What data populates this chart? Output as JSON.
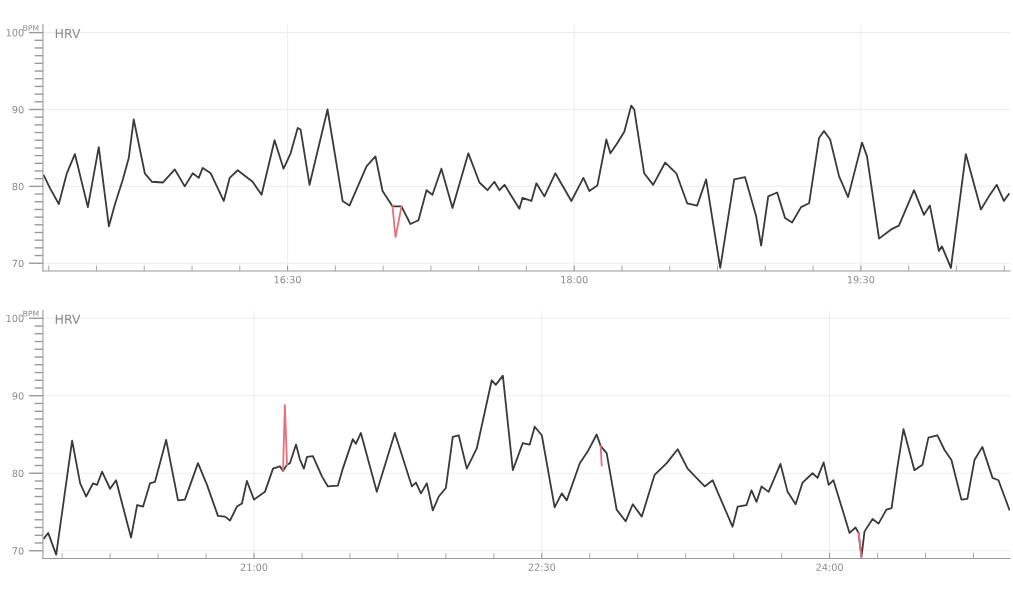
{
  "chart_data": [
    {
      "type": "line",
      "title": "HRV",
      "ylabel": "BPM",
      "grid": true,
      "xlim": [
        15.22,
        20.28
      ],
      "ylim": [
        69,
        101
      ],
      "xticks": [
        {
          "value": 15.25,
          "label": null
        },
        {
          "value": 15.5,
          "label": null
        },
        {
          "value": 15.75,
          "label": null
        },
        {
          "value": 16.0,
          "label": null
        },
        {
          "value": 16.25,
          "label": null
        },
        {
          "value": 16.5,
          "label": "16:30"
        },
        {
          "value": 16.75,
          "label": null
        },
        {
          "value": 17.0,
          "label": null
        },
        {
          "value": 17.25,
          "label": null
        },
        {
          "value": 17.5,
          "label": null
        },
        {
          "value": 17.75,
          "label": null
        },
        {
          "value": 18.0,
          "label": "18:00"
        },
        {
          "value": 18.25,
          "label": null
        },
        {
          "value": 18.5,
          "label": null
        },
        {
          "value": 18.75,
          "label": null
        },
        {
          "value": 19.0,
          "label": null
        },
        {
          "value": 19.25,
          "label": null
        },
        {
          "value": 19.5,
          "label": "19:30"
        },
        {
          "value": 19.75,
          "label": null
        },
        {
          "value": 20.0,
          "label": null
        },
        {
          "value": 20.25,
          "label": null
        }
      ],
      "yticks": [
        70,
        {
          "value": 71,
          "label": null
        },
        {
          "value": 72,
          "label": null
        },
        {
          "value": 73,
          "label": null
        },
        {
          "value": 74,
          "label": null
        },
        {
          "value": 75,
          "label": null
        },
        {
          "value": 76,
          "label": null
        },
        {
          "value": 77,
          "label": null
        },
        {
          "value": 78,
          "label": null
        },
        {
          "value": 79,
          "label": null
        },
        80,
        {
          "value": 81,
          "label": null
        },
        {
          "value": 82,
          "label": null
        },
        {
          "value": 83,
          "label": null
        },
        {
          "value": 84,
          "label": null
        },
        {
          "value": 85,
          "label": null
        },
        {
          "value": 86,
          "label": null
        },
        {
          "value": 87,
          "label": null
        },
        {
          "value": 88,
          "label": null
        },
        {
          "value": 89,
          "label": null
        },
        90,
        {
          "value": 91,
          "label": null
        },
        {
          "value": 92,
          "label": null
        },
        {
          "value": 93,
          "label": null
        },
        {
          "value": 94,
          "label": null
        },
        {
          "value": 95,
          "label": null
        },
        {
          "value": 96,
          "label": null
        },
        {
          "value": 97,
          "label": null
        },
        {
          "value": 98,
          "label": null
        },
        {
          "value": 99,
          "label": null
        },
        100
      ],
      "series": [
        {
          "color": "#3a3a3a",
          "x": [
            15.225,
            15.256,
            15.303,
            15.345,
            15.387,
            15.455,
            15.512,
            15.565,
            15.596,
            15.638,
            15.669,
            15.695,
            15.753,
            15.79,
            15.847,
            15.91,
            15.962,
            16.004,
            16.035,
            16.056,
            16.098,
            16.166,
            16.197,
            16.239,
            16.317,
            16.364,
            16.432,
            16.479,
            16.516,
            16.553,
            16.568,
            16.615,
            16.709,
            16.788,
            16.824,
            16.913,
            16.96,
            16.997,
            17.049,
            17.096,
            17.143,
            17.185,
            17.227,
            17.258,
            17.305,
            17.363,
            17.446,
            17.504,
            17.546,
            17.582,
            17.609,
            17.635,
            17.713,
            17.729,
            17.776,
            17.802,
            17.844,
            17.901,
            17.985,
            18.048,
            18.079,
            18.121,
            18.168,
            18.189,
            18.225,
            18.262,
            18.298,
            18.314,
            18.366,
            18.413,
            18.476,
            18.534,
            18.591,
            18.643,
            18.69,
            18.764,
            18.837,
            18.894,
            18.952,
            18.978,
            19.015,
            19.062,
            19.103,
            19.14,
            19.187,
            19.229,
            19.281,
            19.307,
            19.339,
            19.386,
            19.433,
            19.506,
            19.532,
            19.595,
            19.658,
            19.699,
            19.778,
            19.83,
            19.861,
            19.908,
            19.924,
            19.971,
            20.049,
            20.128,
            20.17,
            20.211,
            20.248,
            20.274
          ],
          "values": [
            81.4,
            79.8,
            77.7,
            81.7,
            84.2,
            77.3,
            85.1,
            74.8,
            77.6,
            80.9,
            83.7,
            88.7,
            81.7,
            80.6,
            80.5,
            82.2,
            80.0,
            81.7,
            81.1,
            82.4,
            81.7,
            78.1,
            81.1,
            82.1,
            80.6,
            78.9,
            86.0,
            82.3,
            84.3,
            87.6,
            87.4,
            80.2,
            90.0,
            78.1,
            77.5,
            82.6,
            83.9,
            79.4,
            77.4,
            77.4,
            75.1,
            75.6,
            79.5,
            78.9,
            82.3,
            77.2,
            84.3,
            80.5,
            79.5,
            80.6,
            79.5,
            80.2,
            77.1,
            78.5,
            78.1,
            80.4,
            78.7,
            81.7,
            78.1,
            81.1,
            79.4,
            80.1,
            86.1,
            84.3,
            85.6,
            87.1,
            90.5,
            90.0,
            81.7,
            80.2,
            83.1,
            81.7,
            77.8,
            77.5,
            80.9,
            69.4,
            80.9,
            81.2,
            76.1,
            72.3,
            78.7,
            79.2,
            75.9,
            75.3,
            77.3,
            77.8,
            86.3,
            87.2,
            86.1,
            81.3,
            78.6,
            85.7,
            83.9,
            73.2,
            74.4,
            74.9,
            79.5,
            76.3,
            77.5,
            71.6,
            72.2,
            69.4,
            84.2,
            77.0,
            78.7,
            80.2,
            78.1,
            79.0
          ]
        },
        {
          "color": "#e8707a",
          "x": [
            17.049,
            17.065,
            17.096
          ],
          "values": [
            77.4,
            73.4,
            77.4
          ]
        }
      ]
    },
    {
      "type": "line",
      "title": "HRV",
      "ylabel": "BPM",
      "grid": true,
      "xlim": [
        19.9,
        24.94
      ],
      "ylim": [
        69,
        101
      ],
      "xticks": [
        {
          "value": 20.0,
          "label": null
        },
        {
          "value": 20.25,
          "label": null
        },
        {
          "value": 20.5,
          "label": null
        },
        {
          "value": 20.75,
          "label": null
        },
        {
          "value": 21.0,
          "label": "21:00"
        },
        {
          "value": 21.25,
          "label": null
        },
        {
          "value": 21.5,
          "label": null
        },
        {
          "value": 21.75,
          "label": null
        },
        {
          "value": 22.0,
          "label": null
        },
        {
          "value": 22.25,
          "label": null
        },
        {
          "value": 22.5,
          "label": "22:30"
        },
        {
          "value": 22.75,
          "label": null
        },
        {
          "value": 23.0,
          "label": null
        },
        {
          "value": 23.25,
          "label": null
        },
        {
          "value": 23.5,
          "label": null
        },
        {
          "value": 23.75,
          "label": null
        },
        {
          "value": 24.0,
          "label": "24:00"
        },
        {
          "value": 24.25,
          "label": null
        },
        {
          "value": 24.5,
          "label": null
        },
        {
          "value": 24.75,
          "label": null
        }
      ],
      "yticks": [
        70,
        {
          "value": 71,
          "label": null
        },
        {
          "value": 72,
          "label": null
        },
        {
          "value": 73,
          "label": null
        },
        {
          "value": 74,
          "label": null
        },
        {
          "value": 75,
          "label": null
        },
        {
          "value": 76,
          "label": null
        },
        {
          "value": 77,
          "label": null
        },
        {
          "value": 78,
          "label": null
        },
        {
          "value": 79,
          "label": null
        },
        80,
        {
          "value": 81,
          "label": null
        },
        {
          "value": 82,
          "label": null
        },
        {
          "value": 83,
          "label": null
        },
        {
          "value": 84,
          "label": null
        },
        {
          "value": 85,
          "label": null
        },
        {
          "value": 86,
          "label": null
        },
        {
          "value": 87,
          "label": null
        },
        {
          "value": 88,
          "label": null
        },
        {
          "value": 89,
          "label": null
        },
        90,
        {
          "value": 91,
          "label": null
        },
        {
          "value": 92,
          "label": null
        },
        {
          "value": 93,
          "label": null
        },
        {
          "value": 94,
          "label": null
        },
        {
          "value": 95,
          "label": null
        },
        {
          "value": 96,
          "label": null
        },
        {
          "value": 97,
          "label": null
        },
        {
          "value": 98,
          "label": null
        },
        {
          "value": 99,
          "label": null
        },
        100
      ],
      "series": [
        {
          "color": "#3a3a3a",
          "x": [
            19.906,
            19.927,
            19.969,
            20.052,
            20.094,
            20.125,
            20.161,
            20.182,
            20.208,
            20.25,
            20.281,
            20.359,
            20.391,
            20.422,
            20.458,
            20.484,
            20.542,
            20.604,
            20.64,
            20.708,
            20.755,
            20.812,
            20.849,
            20.875,
            20.911,
            20.937,
            20.963,
            21.0,
            21.057,
            21.099,
            21.135,
            21.151,
            21.172,
            21.187,
            21.219,
            21.239,
            21.26,
            21.276,
            21.307,
            21.354,
            21.385,
            21.437,
            21.463,
            21.515,
            21.531,
            21.557,
            21.64,
            21.734,
            21.823,
            21.844,
            21.87,
            21.901,
            21.932,
            21.963,
            22.0,
            22.036,
            22.067,
            22.109,
            22.161,
            22.239,
            22.26,
            22.297,
            22.349,
            22.401,
            22.437,
            22.463,
            22.5,
            22.567,
            22.604,
            22.63,
            22.698,
            22.739,
            22.786,
            22.807,
            22.838,
            22.89,
            22.937,
            22.974,
            23.021,
            23.088,
            23.151,
            23.208,
            23.26,
            23.349,
            23.39,
            23.494,
            23.521,
            23.567,
            23.593,
            23.619,
            23.645,
            23.682,
            23.744,
            23.781,
            23.823,
            23.859,
            23.911,
            23.937,
            23.969,
            23.995,
            24.02,
            24.104,
            24.135,
            24.151,
            24.166,
            24.182,
            24.224,
            24.255,
            24.296,
            24.323,
            24.354,
            24.385,
            24.442,
            24.484,
            24.515,
            24.562,
            24.599,
            24.635,
            24.687,
            24.718,
            24.755,
            24.796,
            24.849,
            24.88,
            24.937
          ],
          "values": [
            71.6,
            72.3,
            69.5,
            84.2,
            78.7,
            77.0,
            78.7,
            78.5,
            80.2,
            78.0,
            79.1,
            71.7,
            75.9,
            75.7,
            78.7,
            78.9,
            84.3,
            76.5,
            76.6,
            81.3,
            78.5,
            74.5,
            74.4,
            73.9,
            75.7,
            76.1,
            79.0,
            76.6,
            77.6,
            80.6,
            80.9,
            80.3,
            81.1,
            81.3,
            83.7,
            81.8,
            80.6,
            82.1,
            82.2,
            79.6,
            78.3,
            78.4,
            80.6,
            84.4,
            83.8,
            85.2,
            77.6,
            85.2,
            78.3,
            78.8,
            77.4,
            78.7,
            75.2,
            77.0,
            78.1,
            84.7,
            84.9,
            80.6,
            83.2,
            92.0,
            91.4,
            92.6,
            80.4,
            83.9,
            83.7,
            86.0,
            84.9,
            75.6,
            77.4,
            76.5,
            81.3,
            82.8,
            85.0,
            83.5,
            82.6,
            75.3,
            73.8,
            76.0,
            74.4,
            79.8,
            81.3,
            83.1,
            80.6,
            78.3,
            79.1,
            73.1,
            75.7,
            75.9,
            77.8,
            76.3,
            78.3,
            77.6,
            81.2,
            77.6,
            76.0,
            78.8,
            80.0,
            79.4,
            81.4,
            78.5,
            79.1,
            72.3,
            73.0,
            72.3,
            69.2,
            72.5,
            74.1,
            73.5,
            75.3,
            75.5,
            80.9,
            85.7,
            80.4,
            81.1,
            84.6,
            84.9,
            83.0,
            81.7,
            76.6,
            76.7,
            81.7,
            83.4,
            79.4,
            79.1,
            75.3
          ]
        },
        {
          "color": "#e8707a",
          "x": [
            21.151,
            21.161,
            21.172,
            22.0,
            22.807,
            22.812,
            23.5,
            24.151,
            24.166
          ],
          "values": [
            80.3,
            88.8,
            81.1,
            null,
            83.5,
            81.0,
            null,
            72.3,
            69.2
          ]
        }
      ]
    }
  ]
}
